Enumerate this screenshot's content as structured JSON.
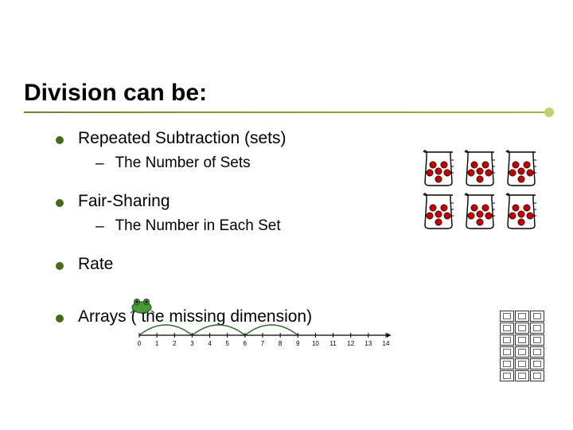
{
  "title": "Division can be:",
  "items": [
    {
      "label": "Repeated Subtraction (sets)",
      "sub": "The Number of Sets"
    },
    {
      "label": "Fair-Sharing",
      "sub": "The Number in Each Set"
    },
    {
      "label": "Rate",
      "sub": null
    },
    {
      "label": "Arrays ( the missing dimension)",
      "sub": null
    }
  ],
  "colors": {
    "bullet": "#4a6a1a",
    "underline_start": "#6a8a2a",
    "underline_end": "#9ab84a",
    "ball": "#c00000",
    "arc": "#2a6a2a",
    "frog_body": "#4a9a3a",
    "text": "#000000",
    "background": "#ffffff"
  },
  "beakers": {
    "count": 6,
    "balls_per_beaker": 6
  },
  "numberline": {
    "min": 0,
    "max": 14,
    "tick_step": 1,
    "arcs": [
      {
        "from": 0,
        "to": 3
      },
      {
        "from": 3,
        "to": 6
      },
      {
        "from": 6,
        "to": 9
      }
    ]
  },
  "array": {
    "rows": 6,
    "cols": 3
  },
  "fonts": {
    "title_size": 30,
    "l1_size": 21,
    "l2_size": 19
  }
}
